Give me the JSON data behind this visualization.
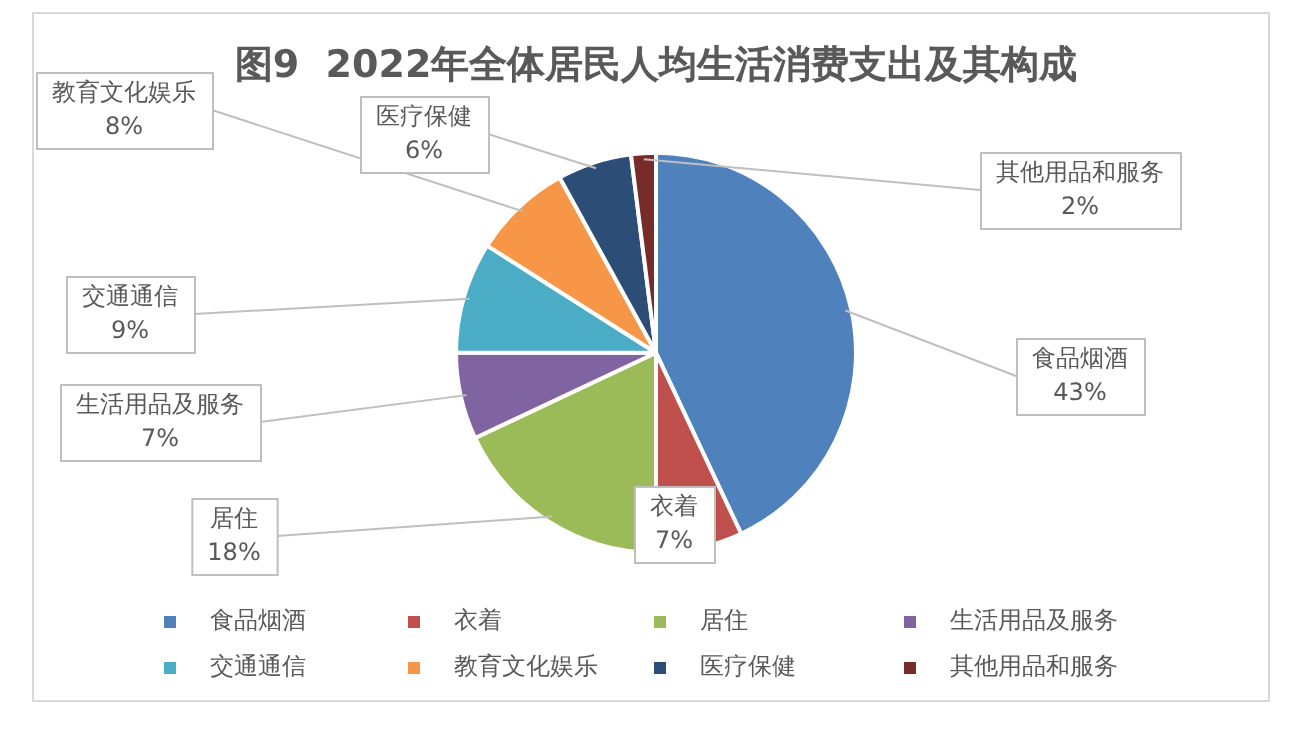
{
  "chart_data": {
    "type": "pie",
    "title": "图9  2022年全体居民人均生活消费支出及其构成",
    "categories": [
      "食品烟酒",
      "衣着",
      "居住",
      "生活用品及服务",
      "交通通信",
      "教育文化娱乐",
      "医疗保健",
      "其他用品和服务"
    ],
    "values": [
      43,
      7,
      18,
      7,
      9,
      8,
      6,
      2
    ],
    "value_labels": [
      "43%",
      "7%",
      "18%",
      "7%",
      "9%",
      "8%",
      "6%",
      "2%"
    ],
    "colors": [
      "#4f81bd",
      "#c0504d",
      "#9bbb59",
      "#8064a2",
      "#4bacc6",
      "#f79646",
      "#2c4d75",
      "#772c2a"
    ],
    "legend": "bottom"
  }
}
